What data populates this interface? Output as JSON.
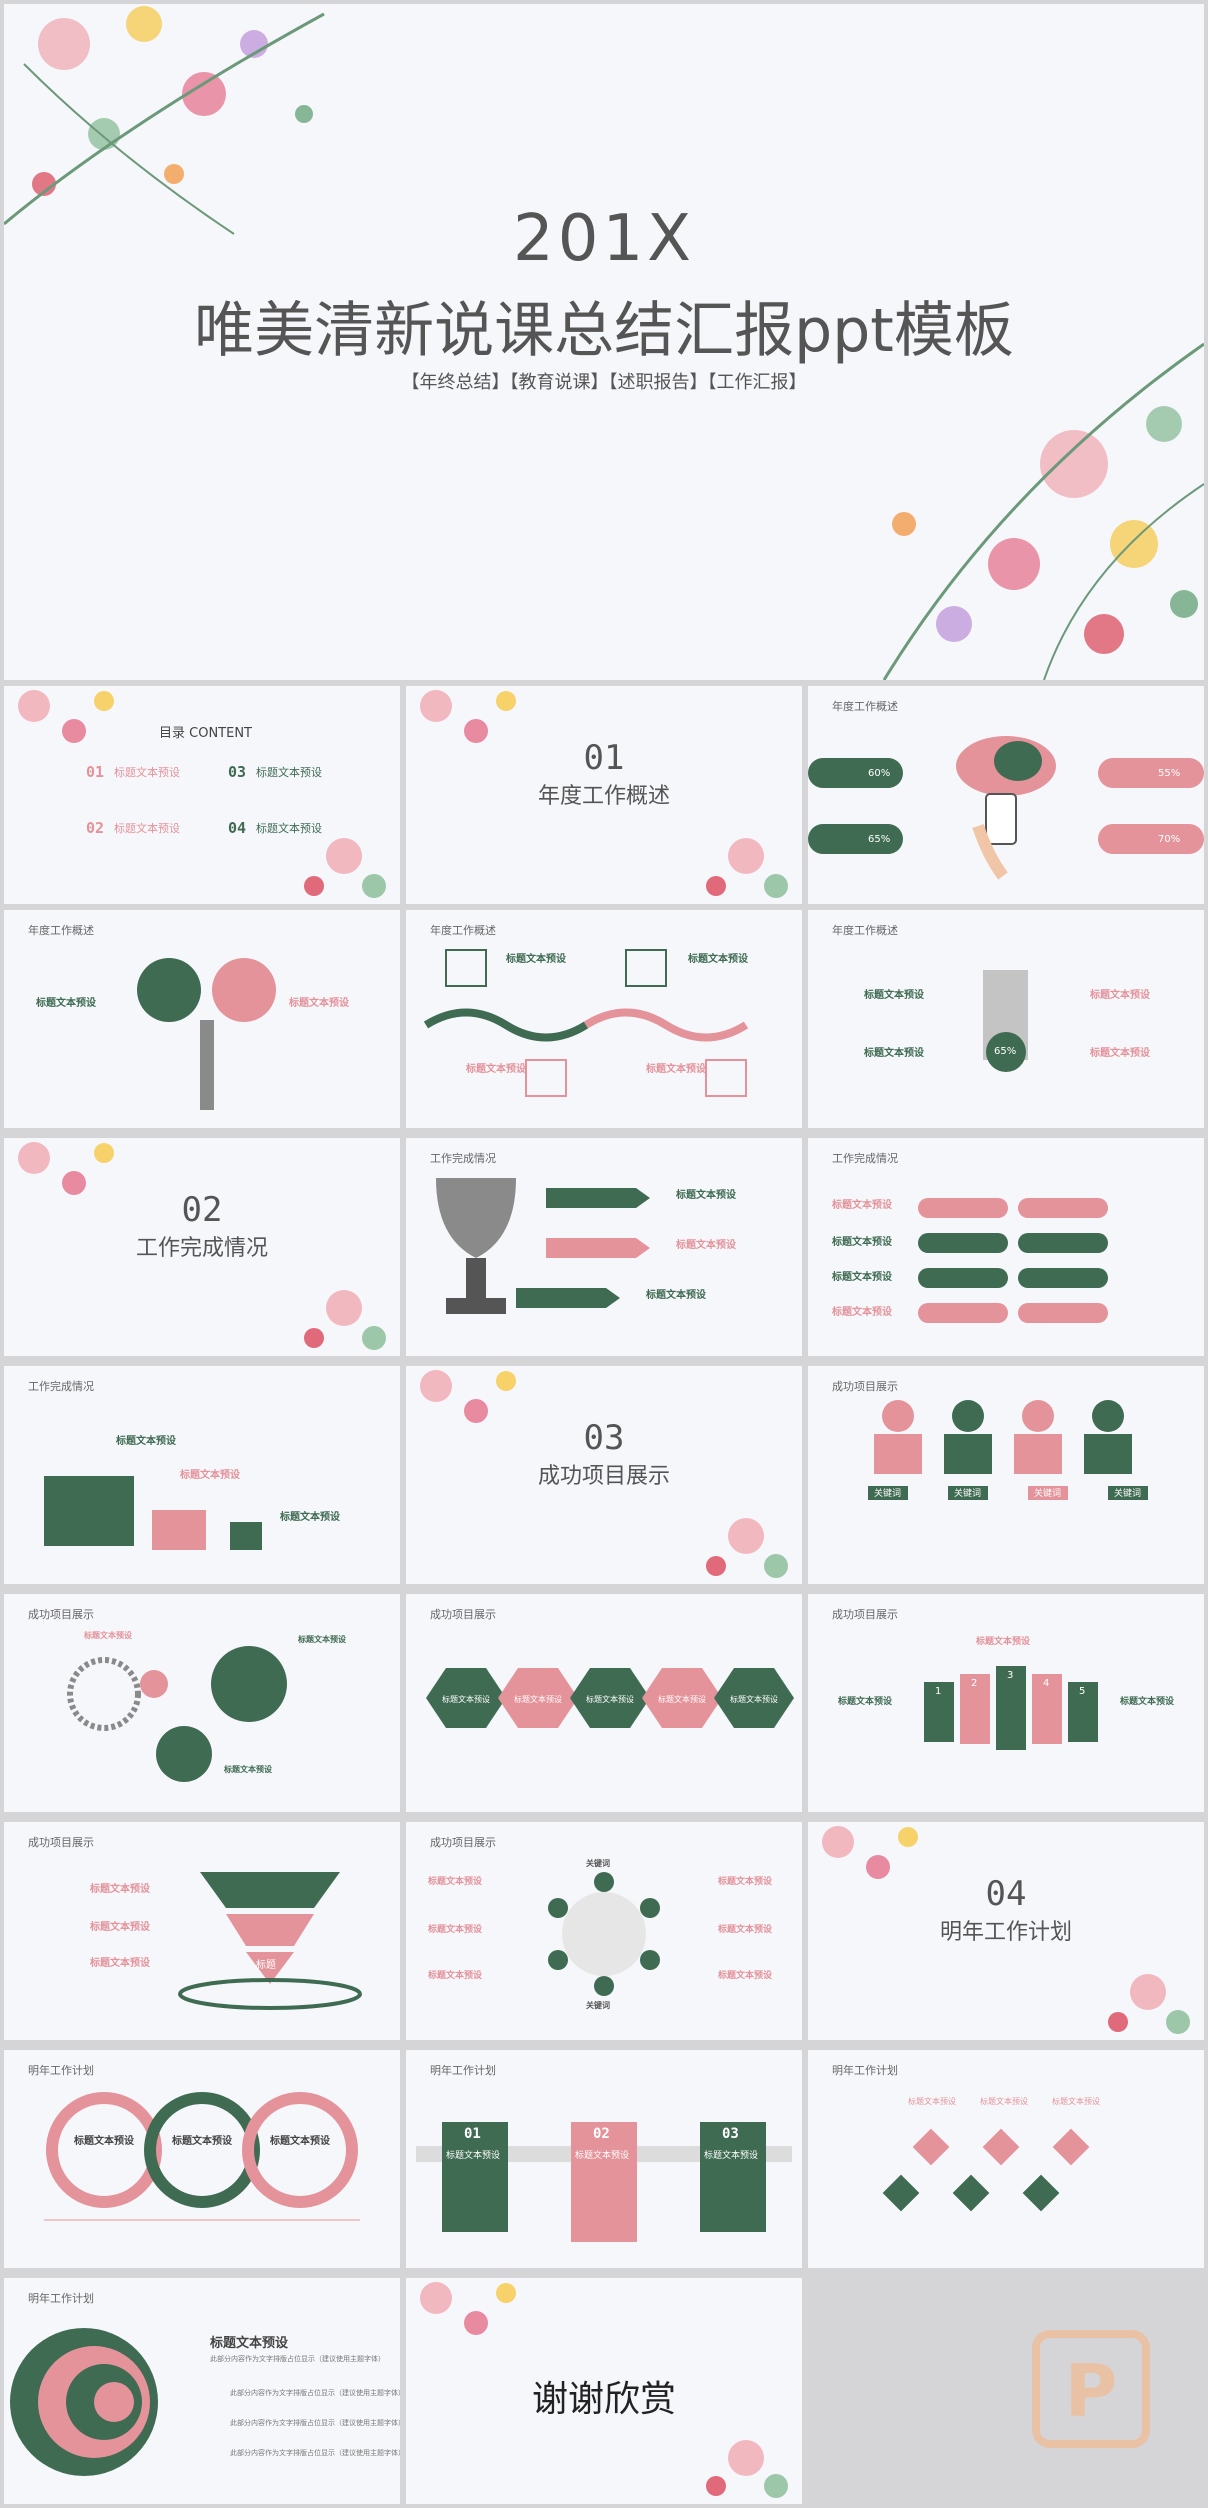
{
  "hero": {
    "year": "201X",
    "title": "唯美清新说课总结汇报ppt模板",
    "tags": "【年终总结】【教育说课】【述职报告】【工作汇报】"
  },
  "toc": {
    "heading": "目录 CONTENT",
    "items": [
      {
        "num": "01",
        "label": "标题文本预设"
      },
      {
        "num": "03",
        "label": "标题文本预设"
      },
      {
        "num": "02",
        "label": "标题文本预设"
      },
      {
        "num": "04",
        "label": "标题文本预设"
      }
    ]
  },
  "sections": [
    {
      "num": "01",
      "label": "年度工作概述"
    },
    {
      "num": "02",
      "label": "工作完成情况"
    },
    {
      "num": "03",
      "label": "成功项目展示"
    },
    {
      "num": "04",
      "label": "明年工作计划"
    }
  ],
  "captions": {
    "annual": "年度工作概述",
    "done": "工作完成情况",
    "success": "成功项目展示",
    "plan": "明年工作计划"
  },
  "common": {
    "heading": "标题文本预设",
    "keyword": "关键词",
    "body": "此部分内容作为文字排版占位显示（建议使用主题字体）",
    "label": "标题"
  },
  "percents": {
    "a": "60%",
    "b": "65%",
    "c": "55%",
    "d": "70%",
    "hand": "65%"
  },
  "steps": [
    "01",
    "02",
    "03"
  ],
  "ranks": [
    "1",
    "2",
    "3",
    "4",
    "5"
  ],
  "thanks": "谢谢欣赏",
  "colors": {
    "pink": "#e4939b",
    "green": "#3f6b52",
    "grey": "#8a8a8a",
    "bg": "#f6f7fb"
  }
}
